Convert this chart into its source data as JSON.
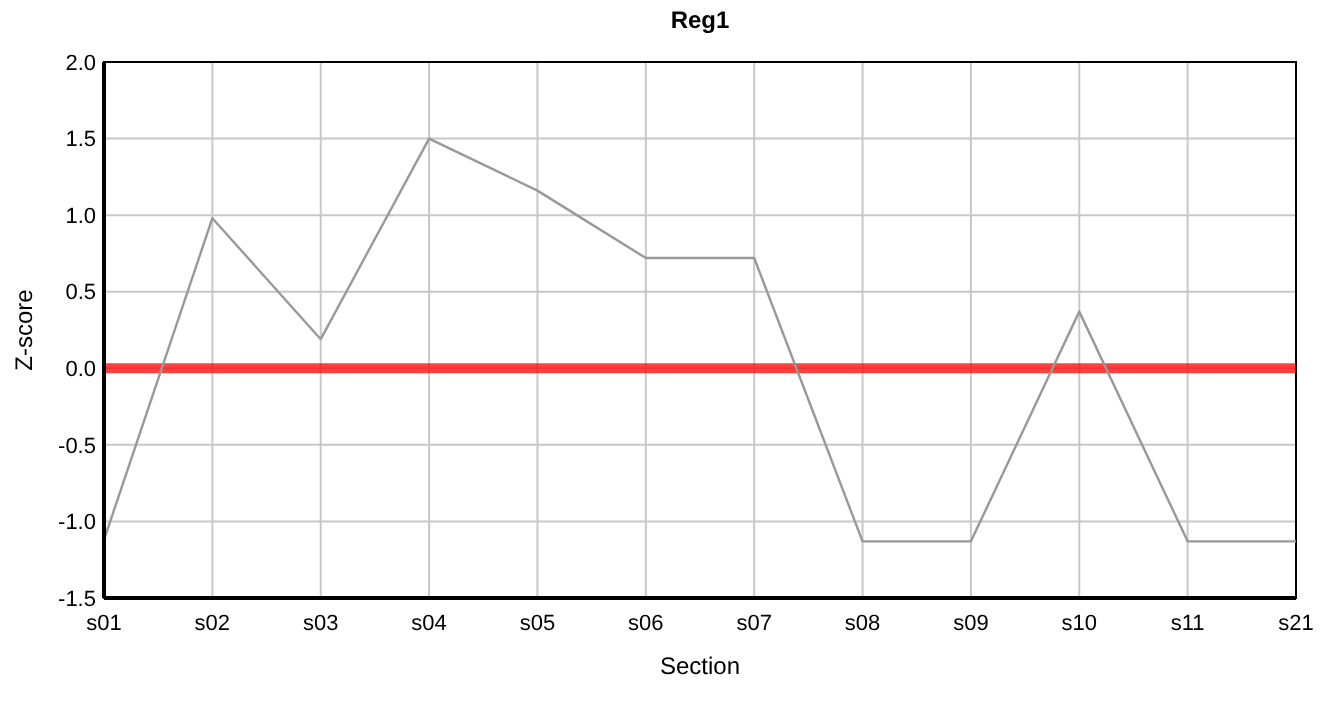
{
  "chart_data": {
    "type": "line",
    "title": "Reg1",
    "xlabel": "Section",
    "ylabel": "Z-score",
    "categories": [
      "s01",
      "s02",
      "s03",
      "s04",
      "s05",
      "s06",
      "s07",
      "s08",
      "s09",
      "s10",
      "s11",
      "s21"
    ],
    "series": [
      {
        "color": "#999999",
        "values": [
          -1.12,
          0.98,
          0.19,
          1.5,
          1.16,
          0.72,
          0.72,
          -1.13,
          -1.13,
          0.37,
          -1.13,
          -1.13
        ]
      }
    ],
    "ylim": [
      -1.5,
      2.0
    ],
    "yticks": [
      {
        "value": -1.5,
        "label": "-1.5"
      },
      {
        "value": -1,
        "label": "-1.0"
      },
      {
        "value": -0.5,
        "label": "-0.5"
      },
      {
        "value": 0,
        "label": "0.0"
      },
      {
        "value": 0.5,
        "label": "0.5"
      },
      {
        "value": 1,
        "label": "1.0"
      },
      {
        "value": 1.5,
        "label": "1.5"
      },
      {
        "value": 2,
        "label": "2.0"
      }
    ],
    "ref_lines": [
      {
        "axis": "y",
        "value": 0,
        "color": "#ff0000"
      }
    ],
    "grid": true,
    "marker": "none",
    "line_style": "solid"
  }
}
